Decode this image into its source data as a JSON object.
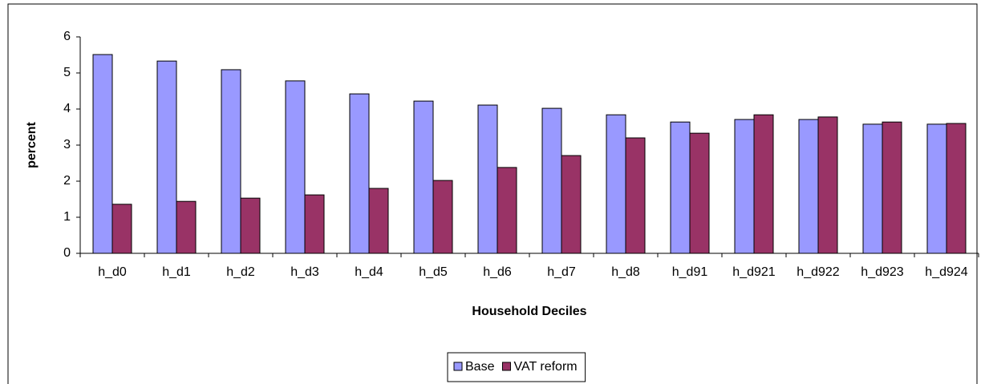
{
  "chart_data": {
    "type": "bar",
    "x_label": "Household Deciles",
    "y_label": "percent",
    "categories": [
      "h_d0",
      "h_d1",
      "h_d2",
      "h_d3",
      "h_d4",
      "h_d5",
      "h_d6",
      "h_d7",
      "h_d8",
      "h_d91",
      "h_d921",
      "h_d922",
      "h_d923",
      "h_d924"
    ],
    "series": [
      {
        "name": "Base",
        "color": "#9999ff",
        "values": [
          5.51,
          5.33,
          5.09,
          4.78,
          4.42,
          4.22,
          4.11,
          4.02,
          3.84,
          3.64,
          3.71,
          3.71,
          3.58,
          3.58
        ]
      },
      {
        "name": "VAT reform",
        "color": "#993366",
        "values": [
          1.36,
          1.44,
          1.53,
          1.62,
          1.8,
          2.02,
          2.38,
          2.71,
          3.2,
          3.33,
          3.84,
          3.78,
          3.64,
          3.6
        ]
      }
    ],
    "ylim": [
      0,
      6
    ],
    "yticks": [
      0,
      1,
      2,
      3,
      4,
      5,
      6
    ],
    "grid": false,
    "legend": "bottom"
  }
}
